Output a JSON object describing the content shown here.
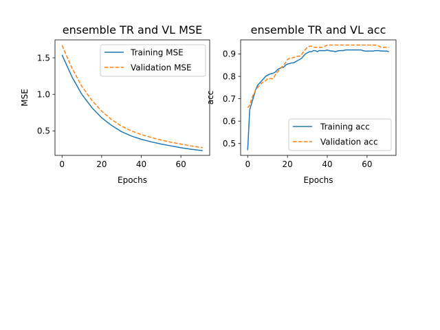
{
  "colors": {
    "training": "#1f77b4",
    "validation": "#ff7f0e",
    "axis": "#000000",
    "background": "#ffffff"
  },
  "chart_data": [
    {
      "type": "line",
      "title": "ensemble TR and VL MSE",
      "xlabel": "Epochs",
      "ylabel": "MSE",
      "xlim": [
        -3.55,
        74.55
      ],
      "ylim": [
        0.165,
        1.745
      ],
      "xticks": [
        0,
        20,
        40,
        60
      ],
      "xtick_labels": [
        "0",
        "20",
        "40",
        "60"
      ],
      "yticks": [
        0.5,
        1.0,
        1.5
      ],
      "ytick_labels": [
        "0.5",
        "1.0",
        "1.5"
      ],
      "grid": false,
      "legend_position": "top-right",
      "series": [
        {
          "name": "Training MSE",
          "style": "solid",
          "x": [
            0,
            5,
            10,
            15,
            20,
            25,
            30,
            35,
            40,
            45,
            50,
            55,
            60,
            65,
            71
          ],
          "y": [
            1.54,
            1.24,
            1.0,
            0.82,
            0.68,
            0.575,
            0.49,
            0.43,
            0.385,
            0.35,
            0.32,
            0.295,
            0.27,
            0.25,
            0.23
          ]
        },
        {
          "name": "Validation MSE",
          "style": "dashed",
          "x": [
            0,
            5,
            10,
            15,
            20,
            25,
            30,
            35,
            40,
            45,
            50,
            55,
            60,
            65,
            71
          ],
          "y": [
            1.67,
            1.36,
            1.11,
            0.92,
            0.77,
            0.655,
            0.565,
            0.5,
            0.45,
            0.41,
            0.375,
            0.345,
            0.32,
            0.295,
            0.27
          ]
        }
      ]
    },
    {
      "type": "line",
      "title": "ensemble TR and VL acc",
      "xlabel": "Epochs",
      "ylabel": "acc",
      "xlim": [
        -3.55,
        74.55
      ],
      "ylim": [
        0.447,
        0.963
      ],
      "xticks": [
        0,
        20,
        40,
        60
      ],
      "xtick_labels": [
        "0",
        "20",
        "40",
        "60"
      ],
      "yticks": [
        0.5,
        0.6,
        0.7,
        0.8,
        0.9
      ],
      "ytick_labels": [
        "0.5",
        "0.6",
        "0.7",
        "0.8",
        "0.9"
      ],
      "grid": false,
      "legend_position": "lower-right",
      "series": [
        {
          "name": "Training acc",
          "style": "solid",
          "x": [
            0,
            1,
            2,
            3,
            4,
            5,
            6,
            7,
            8,
            9,
            10,
            11,
            12,
            13,
            14,
            15,
            16,
            17,
            18,
            19,
            20,
            21,
            22,
            23,
            24,
            25,
            26,
            27,
            28,
            29,
            30,
            31,
            32,
            33,
            34,
            35,
            36,
            37,
            38,
            39,
            40,
            41,
            42,
            43,
            44,
            45,
            46,
            47,
            48,
            49,
            50,
            51,
            52,
            53,
            54,
            55,
            56,
            57,
            58,
            59,
            60,
            61,
            62,
            63,
            64,
            65,
            66,
            67,
            68,
            69,
            70,
            71
          ],
          "y": [
            0.47,
            0.65,
            0.68,
            0.71,
            0.74,
            0.76,
            0.77,
            0.78,
            0.79,
            0.8,
            0.805,
            0.81,
            0.812,
            0.815,
            0.82,
            0.83,
            0.835,
            0.84,
            0.84,
            0.85,
            0.855,
            0.857,
            0.86,
            0.86,
            0.865,
            0.87,
            0.875,
            0.88,
            0.89,
            0.9,
            0.905,
            0.91,
            0.91,
            0.915,
            0.915,
            0.91,
            0.915,
            0.915,
            0.915,
            0.915,
            0.918,
            0.915,
            0.913,
            0.913,
            0.91,
            0.913,
            0.915,
            0.915,
            0.915,
            0.918,
            0.918,
            0.918,
            0.918,
            0.918,
            0.918,
            0.918,
            0.918,
            0.918,
            0.915,
            0.913,
            0.913,
            0.913,
            0.913,
            0.913,
            0.915,
            0.915,
            0.915,
            0.913,
            0.913,
            0.913,
            0.913,
            0.91
          ]
        },
        {
          "name": "Validation acc",
          "style": "dashed",
          "x": [
            0,
            1,
            2,
            3,
            4,
            5,
            6,
            7,
            8,
            9,
            10,
            11,
            12,
            13,
            14,
            15,
            16,
            17,
            18,
            19,
            20,
            21,
            22,
            23,
            24,
            25,
            26,
            27,
            28,
            29,
            30,
            31,
            32,
            33,
            34,
            35,
            36,
            37,
            38,
            39,
            40,
            41,
            42,
            43,
            44,
            45,
            46,
            47,
            48,
            49,
            50,
            51,
            52,
            53,
            54,
            55,
            56,
            57,
            58,
            59,
            60,
            61,
            62,
            63,
            64,
            65,
            66,
            67,
            68,
            69,
            70,
            71
          ],
          "y": [
            0.66,
            0.67,
            0.7,
            0.72,
            0.74,
            0.75,
            0.76,
            0.77,
            0.775,
            0.78,
            0.79,
            0.79,
            0.79,
            0.79,
            0.81,
            0.82,
            0.83,
            0.84,
            0.85,
            0.86,
            0.875,
            0.88,
            0.88,
            0.885,
            0.885,
            0.89,
            0.89,
            0.895,
            0.91,
            0.92,
            0.93,
            0.935,
            0.935,
            0.93,
            0.93,
            0.93,
            0.93,
            0.93,
            0.93,
            0.935,
            0.94,
            0.94,
            0.94,
            0.94,
            0.94,
            0.94,
            0.94,
            0.94,
            0.94,
            0.94,
            0.94,
            0.94,
            0.94,
            0.94,
            0.94,
            0.94,
            0.94,
            0.94,
            0.94,
            0.94,
            0.94,
            0.94,
            0.94,
            0.94,
            0.94,
            0.94,
            0.935,
            0.93,
            0.93,
            0.93,
            0.93,
            0.93
          ]
        }
      ]
    }
  ]
}
